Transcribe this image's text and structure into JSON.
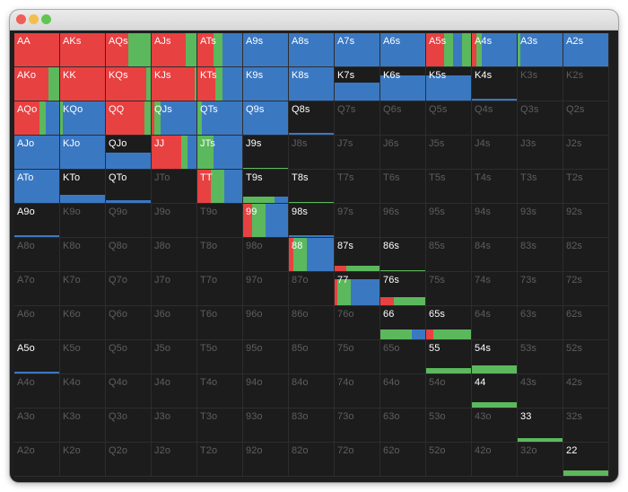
{
  "window": {
    "controls": {
      "close": "#ee5f57",
      "minimize": "#f4be4f",
      "maximize": "#61c554"
    }
  },
  "colors": {
    "raise": "#e84142",
    "call": "#5cb85c",
    "fold": "#3b78c2",
    "empty": "#1c1c1c",
    "label_active": "#ffffff",
    "label_dim": "#5e5e5e"
  },
  "matrix": {
    "ranks": [
      "A",
      "K",
      "Q",
      "J",
      "T",
      "9",
      "8",
      "7",
      "6",
      "5",
      "4",
      "3",
      "2"
    ],
    "rows": [
      [
        {
          "hand": "AA",
          "mix": [
            [
              "r",
              1
            ]
          ]
        },
        {
          "hand": "AKs",
          "mix": [
            [
              "r",
              1
            ]
          ]
        },
        {
          "hand": "AQs",
          "mix": [
            [
              "r",
              0.5
            ],
            [
              "c",
              0.5
            ]
          ]
        },
        {
          "hand": "AJs",
          "mix": [
            [
              "r",
              0.75
            ],
            [
              "c",
              0.25
            ]
          ]
        },
        {
          "hand": "ATs",
          "mix": [
            [
              "r",
              0.35
            ],
            [
              "c",
              0.2
            ],
            [
              "f",
              0.45
            ]
          ]
        },
        {
          "hand": "A9s",
          "mix": [
            [
              "f",
              1
            ]
          ]
        },
        {
          "hand": "A8s",
          "mix": [
            [
              "f",
              1
            ]
          ]
        },
        {
          "hand": "A7s",
          "mix": [
            [
              "f",
              1
            ]
          ]
        },
        {
          "hand": "A6s",
          "mix": [
            [
              "f",
              1
            ]
          ]
        },
        {
          "hand": "A5s",
          "mix": [
            [
              "r",
              0.4
            ],
            [
              "c",
              0.2
            ],
            [
              "f",
              0.2
            ],
            [
              "c",
              0.2
            ]
          ]
        },
        {
          "hand": "A4s",
          "mix": [
            [
              "r",
              0.1
            ],
            [
              "c",
              0.12
            ],
            [
              "f",
              0.78
            ]
          ]
        },
        {
          "hand": "A3s",
          "mix": [
            [
              "c",
              0.05
            ],
            [
              "f",
              0.95
            ]
          ]
        },
        {
          "hand": "A2s",
          "mix": [
            [
              "f",
              1
            ]
          ]
        }
      ],
      [
        {
          "hand": "AKo",
          "mix": [
            [
              "r",
              0.75
            ],
            [
              "c",
              0.25
            ]
          ]
        },
        {
          "hand": "KK",
          "mix": [
            [
              "r",
              1
            ]
          ]
        },
        {
          "hand": "KQs",
          "mix": [
            [
              "r",
              0.9
            ],
            [
              "c",
              0.1
            ]
          ]
        },
        {
          "hand": "KJs",
          "mix": [
            [
              "r",
              0.95
            ],
            [
              "c",
              0.05
            ]
          ]
        },
        {
          "hand": "KTs",
          "mix": [
            [
              "r",
              0.4
            ],
            [
              "c",
              0.15
            ],
            [
              "f",
              0.45
            ]
          ]
        },
        {
          "hand": "K9s",
          "mix": [
            [
              "f",
              1
            ]
          ]
        },
        {
          "hand": "K8s",
          "mix": [
            [
              "f",
              1
            ]
          ]
        },
        {
          "hand": "K7s",
          "mix": [
            [
              "f",
              1
            ]
          ],
          "h": 0.55
        },
        {
          "hand": "K6s",
          "mix": [
            [
              "f",
              1
            ]
          ],
          "h": 0.75
        },
        {
          "hand": "K5s",
          "mix": [
            [
              "f",
              1
            ]
          ],
          "h": 0.75
        },
        {
          "hand": "K4s",
          "mix": [
            [
              "f",
              1
            ]
          ],
          "h": 0.05
        },
        {
          "hand": "K3s",
          "mix": []
        },
        {
          "hand": "K2s",
          "mix": []
        }
      ],
      [
        {
          "hand": "AQo",
          "mix": [
            [
              "r",
              0.55
            ],
            [
              "c",
              0.15
            ],
            [
              "f",
              0.3
            ]
          ]
        },
        {
          "hand": "KQo",
          "mix": [
            [
              "c",
              0.05
            ],
            [
              "f",
              0.95
            ]
          ]
        },
        {
          "hand": "QQ",
          "mix": [
            [
              "r",
              0.85
            ],
            [
              "c",
              0.15
            ]
          ]
        },
        {
          "hand": "QJs",
          "mix": [
            [
              "r",
              0.05
            ],
            [
              "c",
              0.15
            ],
            [
              "f",
              0.8
            ]
          ]
        },
        {
          "hand": "QTs",
          "mix": [
            [
              "c",
              0.1
            ],
            [
              "f",
              0.9
            ]
          ]
        },
        {
          "hand": "Q9s",
          "mix": [
            [
              "f",
              1
            ]
          ]
        },
        {
          "hand": "Q8s",
          "mix": [
            [
              "f",
              1
            ]
          ],
          "h": 0.06
        },
        {
          "hand": "Q7s",
          "mix": []
        },
        {
          "hand": "Q6s",
          "mix": []
        },
        {
          "hand": "Q5s",
          "mix": []
        },
        {
          "hand": "Q4s",
          "mix": []
        },
        {
          "hand": "Q3s",
          "mix": []
        },
        {
          "hand": "Q2s",
          "mix": []
        }
      ],
      [
        {
          "hand": "AJo",
          "mix": [
            [
              "f",
              1
            ]
          ]
        },
        {
          "hand": "KJo",
          "mix": [
            [
              "f",
              1
            ]
          ]
        },
        {
          "hand": "QJo",
          "mix": [
            [
              "f",
              1
            ]
          ],
          "h": 0.5
        },
        {
          "hand": "JJ",
          "mix": [
            [
              "r",
              0.65
            ],
            [
              "c",
              0.15
            ],
            [
              "f",
              0.2
            ]
          ]
        },
        {
          "hand": "JTs",
          "mix": [
            [
              "c",
              0.35
            ],
            [
              "f",
              0.65
            ]
          ]
        },
        {
          "hand": "J9s",
          "mix": [
            [
              "c",
              1
            ]
          ],
          "h": 0.03
        },
        {
          "hand": "J8s",
          "mix": []
        },
        {
          "hand": "J7s",
          "mix": []
        },
        {
          "hand": "J6s",
          "mix": []
        },
        {
          "hand": "J5s",
          "mix": []
        },
        {
          "hand": "J4s",
          "mix": []
        },
        {
          "hand": "J3s",
          "mix": []
        },
        {
          "hand": "J2s",
          "mix": []
        }
      ],
      [
        {
          "hand": "ATo",
          "mix": [
            [
              "f",
              1
            ]
          ]
        },
        {
          "hand": "KTo",
          "mix": [
            [
              "f",
              1
            ]
          ],
          "h": 0.25
        },
        {
          "hand": "QTo",
          "mix": [
            [
              "f",
              1
            ]
          ],
          "h": 0.08
        },
        {
          "hand": "JTo",
          "mix": []
        },
        {
          "hand": "TT",
          "mix": [
            [
              "r",
              0.3
            ],
            [
              "c",
              0.3
            ],
            [
              "f",
              0.4
            ]
          ]
        },
        {
          "hand": "T9s",
          "mix": [
            [
              "c",
              0.7
            ],
            [
              "f",
              0.3
            ]
          ],
          "h": 0.2
        },
        {
          "hand": "T8s",
          "mix": [
            [
              "c",
              1
            ]
          ],
          "h": 0.03
        },
        {
          "hand": "T7s",
          "mix": []
        },
        {
          "hand": "T6s",
          "mix": []
        },
        {
          "hand": "T5s",
          "mix": []
        },
        {
          "hand": "T4s",
          "mix": []
        },
        {
          "hand": "T3s",
          "mix": []
        },
        {
          "hand": "T2s",
          "mix": []
        }
      ],
      [
        {
          "hand": "A9o",
          "mix": [
            [
              "f",
              1
            ]
          ],
          "h": 0.06
        },
        {
          "hand": "K9o",
          "mix": []
        },
        {
          "hand": "Q9o",
          "mix": []
        },
        {
          "hand": "J9o",
          "mix": []
        },
        {
          "hand": "T9o",
          "mix": []
        },
        {
          "hand": "99",
          "mix": [
            [
              "r",
              0.2
            ],
            [
              "c",
              0.3
            ],
            [
              "f",
              0.5
            ]
          ]
        },
        {
          "hand": "98s",
          "mix": [
            [
              "f",
              1
            ]
          ],
          "h": 0.05
        },
        {
          "hand": "97s",
          "mix": []
        },
        {
          "hand": "96s",
          "mix": []
        },
        {
          "hand": "95s",
          "mix": []
        },
        {
          "hand": "94s",
          "mix": []
        },
        {
          "hand": "93s",
          "mix": []
        },
        {
          "hand": "92s",
          "mix": []
        }
      ],
      [
        {
          "hand": "A8o",
          "mix": []
        },
        {
          "hand": "K8o",
          "mix": []
        },
        {
          "hand": "Q8o",
          "mix": []
        },
        {
          "hand": "J8o",
          "mix": []
        },
        {
          "hand": "T8o",
          "mix": []
        },
        {
          "hand": "98o",
          "mix": []
        },
        {
          "hand": "88",
          "mix": [
            [
              "r",
              0.1
            ],
            [
              "c",
              0.3
            ],
            [
              "f",
              0.6
            ]
          ]
        },
        {
          "hand": "87s",
          "mix": [
            [
              "r",
              0.25
            ],
            [
              "c",
              0.75
            ]
          ],
          "h": 0.15
        },
        {
          "hand": "86s",
          "mix": [
            [
              "c",
              1
            ]
          ],
          "h": 0.03
        },
        {
          "hand": "85s",
          "mix": []
        },
        {
          "hand": "84s",
          "mix": []
        },
        {
          "hand": "83s",
          "mix": []
        },
        {
          "hand": "82s",
          "mix": []
        }
      ],
      [
        {
          "hand": "A7o",
          "mix": []
        },
        {
          "hand": "K7o",
          "mix": []
        },
        {
          "hand": "Q7o",
          "mix": []
        },
        {
          "hand": "J7o",
          "mix": []
        },
        {
          "hand": "T7o",
          "mix": []
        },
        {
          "hand": "97o",
          "mix": []
        },
        {
          "hand": "87o",
          "mix": []
        },
        {
          "hand": "77",
          "mix": [
            [
              "r",
              0.05
            ],
            [
              "c",
              0.3
            ],
            [
              "f",
              0.65
            ]
          ],
          "h": 0.78
        },
        {
          "hand": "76s",
          "mix": [
            [
              "r",
              0.3
            ],
            [
              "c",
              0.7
            ]
          ],
          "h": 0.25
        },
        {
          "hand": "75s",
          "mix": []
        },
        {
          "hand": "74s",
          "mix": []
        },
        {
          "hand": "73s",
          "mix": []
        },
        {
          "hand": "72s",
          "mix": []
        }
      ],
      [
        {
          "hand": "A6o",
          "mix": []
        },
        {
          "hand": "K6o",
          "mix": []
        },
        {
          "hand": "Q6o",
          "mix": []
        },
        {
          "hand": "J6o",
          "mix": []
        },
        {
          "hand": "T6o",
          "mix": []
        },
        {
          "hand": "96o",
          "mix": []
        },
        {
          "hand": "86o",
          "mix": []
        },
        {
          "hand": "76o",
          "mix": []
        },
        {
          "hand": "66",
          "mix": [
            [
              "c",
              0.7
            ],
            [
              "f",
              0.3
            ]
          ],
          "h": 0.3
        },
        {
          "hand": "65s",
          "mix": [
            [
              "r",
              0.15
            ],
            [
              "c",
              0.85
            ]
          ],
          "h": 0.3
        },
        {
          "hand": "64s",
          "mix": []
        },
        {
          "hand": "63s",
          "mix": []
        },
        {
          "hand": "62s",
          "mix": []
        }
      ],
      [
        {
          "hand": "A5o",
          "mix": [
            [
              "f",
              1
            ]
          ],
          "h": 0.06
        },
        {
          "hand": "K5o",
          "mix": []
        },
        {
          "hand": "Q5o",
          "mix": []
        },
        {
          "hand": "J5o",
          "mix": []
        },
        {
          "hand": "T5o",
          "mix": []
        },
        {
          "hand": "95o",
          "mix": []
        },
        {
          "hand": "85o",
          "mix": []
        },
        {
          "hand": "75o",
          "mix": []
        },
        {
          "hand": "65o",
          "mix": []
        },
        {
          "hand": "55",
          "mix": [
            [
              "c",
              1
            ]
          ],
          "h": 0.15
        },
        {
          "hand": "54s",
          "mix": [
            [
              "c",
              1
            ]
          ],
          "h": 0.25
        },
        {
          "hand": "53s",
          "mix": []
        },
        {
          "hand": "52s",
          "mix": []
        }
      ],
      [
        {
          "hand": "A4o",
          "mix": []
        },
        {
          "hand": "K4o",
          "mix": []
        },
        {
          "hand": "Q4o",
          "mix": []
        },
        {
          "hand": "J4o",
          "mix": []
        },
        {
          "hand": "T4o",
          "mix": []
        },
        {
          "hand": "94o",
          "mix": []
        },
        {
          "hand": "84o",
          "mix": []
        },
        {
          "hand": "74o",
          "mix": []
        },
        {
          "hand": "64o",
          "mix": []
        },
        {
          "hand": "54o",
          "mix": []
        },
        {
          "hand": "44",
          "mix": [
            [
              "c",
              1
            ]
          ],
          "h": 0.15
        },
        {
          "hand": "43s",
          "mix": []
        },
        {
          "hand": "42s",
          "mix": []
        }
      ],
      [
        {
          "hand": "A3o",
          "mix": []
        },
        {
          "hand": "K3o",
          "mix": []
        },
        {
          "hand": "Q3o",
          "mix": []
        },
        {
          "hand": "J3o",
          "mix": []
        },
        {
          "hand": "T3o",
          "mix": []
        },
        {
          "hand": "93o",
          "mix": []
        },
        {
          "hand": "83o",
          "mix": []
        },
        {
          "hand": "73o",
          "mix": []
        },
        {
          "hand": "63o",
          "mix": []
        },
        {
          "hand": "53o",
          "mix": []
        },
        {
          "hand": "43o",
          "mix": []
        },
        {
          "hand": "33",
          "mix": [
            [
              "c",
              1
            ]
          ],
          "h": 0.1
        },
        {
          "hand": "32s",
          "mix": []
        }
      ],
      [
        {
          "hand": "A2o",
          "mix": []
        },
        {
          "hand": "K2o",
          "mix": []
        },
        {
          "hand": "Q2o",
          "mix": []
        },
        {
          "hand": "J2o",
          "mix": []
        },
        {
          "hand": "T2o",
          "mix": []
        },
        {
          "hand": "92o",
          "mix": []
        },
        {
          "hand": "82o",
          "mix": []
        },
        {
          "hand": "72o",
          "mix": []
        },
        {
          "hand": "62o",
          "mix": []
        },
        {
          "hand": "52o",
          "mix": []
        },
        {
          "hand": "42o",
          "mix": []
        },
        {
          "hand": "32o",
          "mix": []
        },
        {
          "hand": "22",
          "mix": [
            [
              "c",
              1
            ]
          ],
          "h": 0.15
        }
      ]
    ]
  }
}
